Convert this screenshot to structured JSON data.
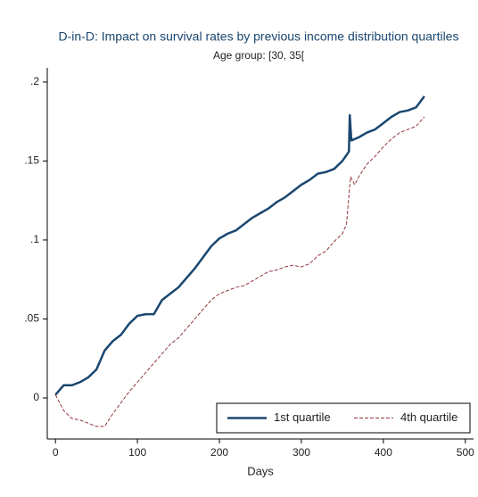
{
  "chart_data": {
    "type": "line",
    "title": "D-in-D: Impact on survival rates by previous income distribution quartiles",
    "subtitle": "Age group: [30, 35[",
    "x_label": "Days",
    "xlim": [
      -10,
      510
    ],
    "xticks": [
      0,
      100,
      200,
      300,
      400,
      500
    ],
    "ylim": [
      -0.026,
      0.209
    ],
    "yticks": [
      {
        "value": 0,
        "label": "0"
      },
      {
        "value": 0.05,
        "label": ".05"
      },
      {
        "value": 0.1,
        "label": ".1"
      },
      {
        "value": 0.15,
        "label": ".15"
      },
      {
        "value": 0.2,
        "label": ".2"
      }
    ],
    "grid": false,
    "legend": "lower right",
    "series": [
      {
        "name": "1st quartile",
        "color": "#1a476f",
        "dash": false,
        "x": [
          0,
          10,
          20,
          30,
          40,
          50,
          60,
          70,
          80,
          90,
          100,
          110,
          120,
          130,
          140,
          150,
          160,
          170,
          180,
          190,
          200,
          210,
          220,
          230,
          240,
          250,
          260,
          270,
          280,
          290,
          300,
          310,
          320,
          330,
          340,
          350,
          358,
          359,
          361,
          370,
          380,
          390,
          400,
          410,
          420,
          430,
          440,
          450
        ],
        "values": [
          0.002,
          0.008,
          0.008,
          0.01,
          0.013,
          0.018,
          0.03,
          0.036,
          0.04,
          0.047,
          0.052,
          0.053,
          0.053,
          0.062,
          0.066,
          0.07,
          0.076,
          0.082,
          0.089,
          0.096,
          0.101,
          0.104,
          0.106,
          0.11,
          0.114,
          0.117,
          0.12,
          0.124,
          0.127,
          0.131,
          0.135,
          0.138,
          0.142,
          0.143,
          0.145,
          0.15,
          0.156,
          0.179,
          0.163,
          0.165,
          0.168,
          0.17,
          0.174,
          0.178,
          0.181,
          0.182,
          0.184,
          0.191
        ]
      },
      {
        "name": "4th quartile",
        "color": "#90353b",
        "dash": true,
        "x": [
          0,
          10,
          20,
          30,
          40,
          50,
          60,
          70,
          80,
          90,
          100,
          110,
          120,
          130,
          140,
          150,
          160,
          170,
          180,
          190,
          200,
          210,
          220,
          230,
          240,
          250,
          260,
          270,
          280,
          290,
          300,
          310,
          320,
          330,
          340,
          350,
          355,
          360,
          365,
          370,
          380,
          390,
          400,
          410,
          420,
          430,
          440,
          450
        ],
        "values": [
          0.002,
          -0.008,
          -0.013,
          -0.014,
          -0.016,
          -0.018,
          -0.018,
          -0.01,
          -0.003,
          0.004,
          0.01,
          0.016,
          0.022,
          0.028,
          0.034,
          0.038,
          0.044,
          0.05,
          0.056,
          0.062,
          0.066,
          0.068,
          0.07,
          0.071,
          0.074,
          0.077,
          0.08,
          0.081,
          0.083,
          0.084,
          0.083,
          0.085,
          0.09,
          0.093,
          0.099,
          0.104,
          0.11,
          0.14,
          0.135,
          0.14,
          0.148,
          0.153,
          0.159,
          0.164,
          0.168,
          0.17,
          0.172,
          0.178
        ]
      }
    ]
  }
}
